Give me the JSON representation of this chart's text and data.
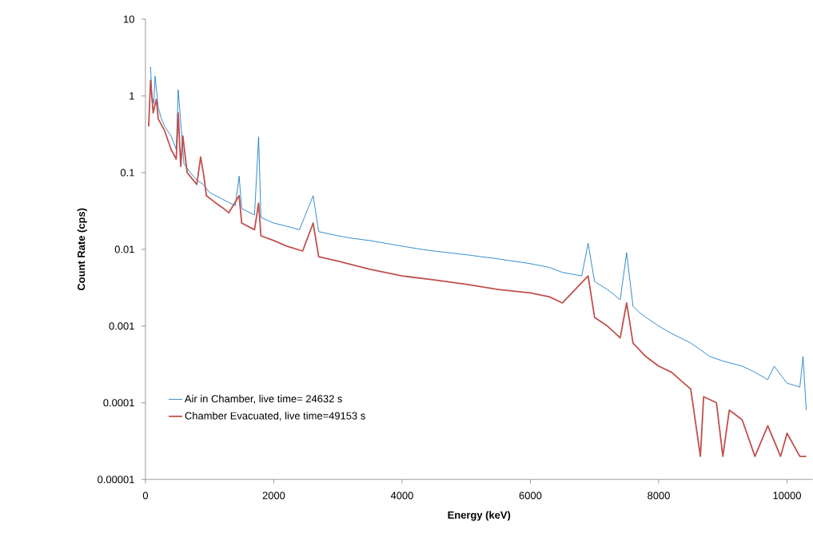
{
  "chart_data": {
    "type": "line",
    "xlabel": "Energy (keV)",
    "ylabel": "Count Rate (cps)",
    "log": "y",
    "xlim": [
      0,
      10400
    ],
    "ylim": [
      1e-05,
      10
    ],
    "xticks": [
      0,
      2000,
      4000,
      6000,
      8000,
      10000
    ],
    "yticks": [
      {
        "value": 1e-05,
        "label": "0.00001"
      },
      {
        "value": 0.0001,
        "label": "0.0001"
      },
      {
        "value": 0.001,
        "label": "0.001"
      },
      {
        "value": 0.01,
        "label": "0.01"
      },
      {
        "value": 0.1,
        "label": "0.1"
      },
      {
        "value": 1,
        "label": "1"
      },
      {
        "value": 10,
        "label": "10"
      }
    ],
    "grid": false,
    "legend": "bottom left",
    "marker": "none",
    "line_style": "solid",
    "series": [
      {
        "name": "Air in Chamber, live time= 24632 s",
        "color": "#0070c0",
        "x": [
          80,
          100,
          130,
          150,
          200,
          250,
          300,
          400,
          480,
          511,
          600,
          700,
          800,
          900,
          1000,
          1200,
          1400,
          1460,
          1500,
          1700,
          1764,
          1800,
          2000,
          2200,
          2400,
          2614,
          2700,
          3000,
          3200,
          3500,
          4000,
          4300,
          4500,
          5000,
          5500,
          6000,
          6300,
          6500,
          6800,
          6900,
          7000,
          7200,
          7400,
          7500,
          7600,
          7700,
          7800,
          8000,
          8200,
          8500,
          8800,
          9000,
          9300,
          9500,
          9700,
          9800,
          10000,
          10200,
          10250,
          10300
        ],
        "values": [
          2.4,
          1.0,
          0.8,
          1.8,
          0.7,
          0.5,
          0.4,
          0.3,
          0.2,
          1.2,
          0.13,
          0.1,
          0.08,
          0.07,
          0.055,
          0.045,
          0.037,
          0.09,
          0.034,
          0.028,
          0.29,
          0.026,
          0.022,
          0.02,
          0.018,
          0.05,
          0.017,
          0.015,
          0.014,
          0.013,
          0.011,
          0.01,
          0.0095,
          0.0085,
          0.0075,
          0.0065,
          0.0058,
          0.005,
          0.0045,
          0.012,
          0.0038,
          0.003,
          0.0022,
          0.009,
          0.0018,
          0.0015,
          0.0013,
          0.001,
          0.0008,
          0.0006,
          0.0004,
          0.00035,
          0.0003,
          0.00025,
          0.0002,
          0.0003,
          0.00018,
          0.00016,
          0.0004,
          8e-05
        ]
      },
      {
        "name": "Chamber Evacuated, live time=49153 s",
        "color": "#c0504d",
        "x": [
          50,
          80,
          120,
          170,
          200,
          300,
          400,
          480,
          511,
          550,
          583,
          650,
          800,
          860,
          911,
          950,
          1100,
          1200,
          1300,
          1460,
          1500,
          1700,
          1764,
          1800,
          2000,
          2200,
          2450,
          2614,
          2700,
          3000,
          3500,
          4000,
          4500,
          5000,
          5500,
          6000,
          6300,
          6500,
          6900,
          7000,
          7200,
          7400,
          7500,
          7600,
          7800,
          8000,
          8200,
          8500,
          8650,
          8700,
          8900,
          9000,
          9100,
          9300,
          9500,
          9700,
          9900,
          10000,
          10200,
          10300
        ],
        "values": [
          0.4,
          1.6,
          0.6,
          0.9,
          0.5,
          0.35,
          0.2,
          0.15,
          0.6,
          0.12,
          0.3,
          0.1,
          0.07,
          0.16,
          0.09,
          0.05,
          0.04,
          0.035,
          0.03,
          0.05,
          0.022,
          0.018,
          0.04,
          0.015,
          0.013,
          0.011,
          0.0095,
          0.022,
          0.008,
          0.007,
          0.0055,
          0.0045,
          0.004,
          0.0035,
          0.003,
          0.0027,
          0.0024,
          0.002,
          0.0045,
          0.0013,
          0.001,
          0.0007,
          0.002,
          0.0006,
          0.0004,
          0.0003,
          0.00025,
          0.00015,
          2e-05,
          0.00012,
          0.0001,
          2e-05,
          8e-05,
          6e-05,
          2e-05,
          5e-05,
          2e-05,
          4e-05,
          2e-05,
          2e-05
        ]
      }
    ]
  }
}
